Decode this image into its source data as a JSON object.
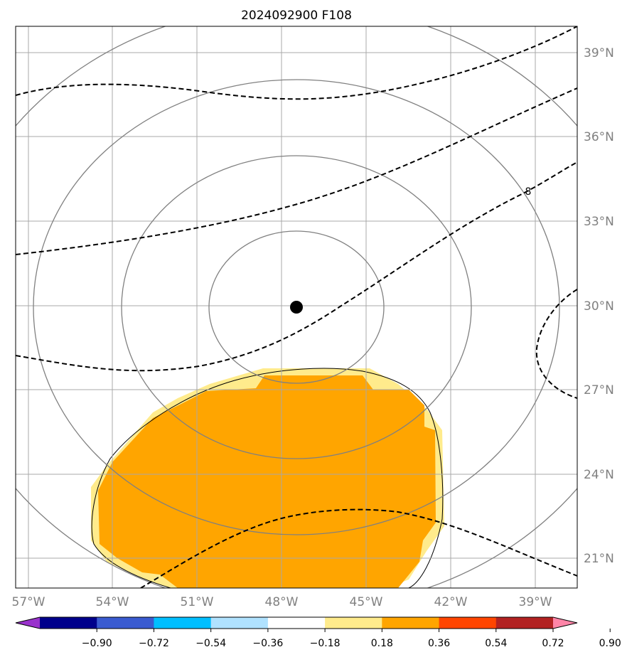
{
  "title": "2024092900 F108",
  "map": {
    "lon_labels": [
      "57°W",
      "54°W",
      "51°W",
      "48°W",
      "45°W",
      "42°W",
      "39°W"
    ],
    "lat_labels": [
      "39°N",
      "36°N",
      "33°N",
      "30°N",
      "27°N",
      "24°N",
      "21°N"
    ],
    "storm_center": {
      "lon": -47.5,
      "lat": 30.0
    },
    "range_ring_color": "#808080",
    "gridline_color": "#a0a0a0",
    "fill_color_0_18_0_36": "#ffeb8c",
    "fill_color_0_36_0_54": "#ffa500",
    "dashed_contour_label": "8"
  },
  "colorbar": {
    "ticks": [
      "−0.90",
      "−0.72",
      "−0.54",
      "−0.36",
      "−0.18",
      "0.18",
      "0.36",
      "0.54",
      "0.72",
      "0.90"
    ],
    "colors": [
      "#9932cc",
      "#00008b",
      "#3a5bd0",
      "#00bfff",
      "#b0e2ff",
      "#ffffff",
      "#ffeb8c",
      "#ffa500",
      "#ff4500",
      "#b22222",
      "#ff85a8"
    ]
  }
}
